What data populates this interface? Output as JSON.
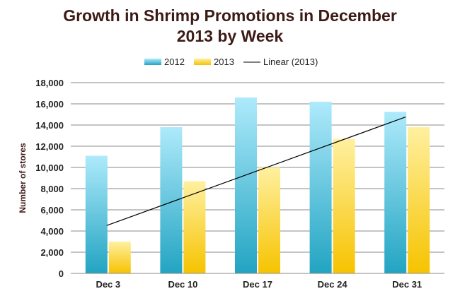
{
  "chart_data": {
    "type": "bar",
    "title": [
      "Growth in Shrimp Promotions in December",
      "2013 by Week"
    ],
    "ylabel": "Number of stores",
    "xlabel": "",
    "categories": [
      "Dec 3",
      "Dec 10",
      "Dec  17",
      "Dec 24",
      "Dec 31"
    ],
    "series": [
      {
        "name": "2012",
        "values": [
          11100,
          13800,
          16600,
          16200,
          15250
        ],
        "color": "#2aaac8"
      },
      {
        "name": "2013",
        "values": [
          3000,
          8700,
          10000,
          12700,
          13800
        ],
        "color": "#f7c600"
      }
    ],
    "trendline": {
      "name": "Linear (2013)",
      "series": "2013",
      "type": "linear",
      "color": "#000000"
    },
    "ylim": [
      0,
      18000
    ],
    "yticks": [
      "0",
      "2,000",
      "4,000",
      "6,000",
      "8,000",
      "10,000",
      "12,000",
      "14,000",
      "16,000",
      "18,000"
    ],
    "grid": true,
    "legend_position": "top"
  }
}
